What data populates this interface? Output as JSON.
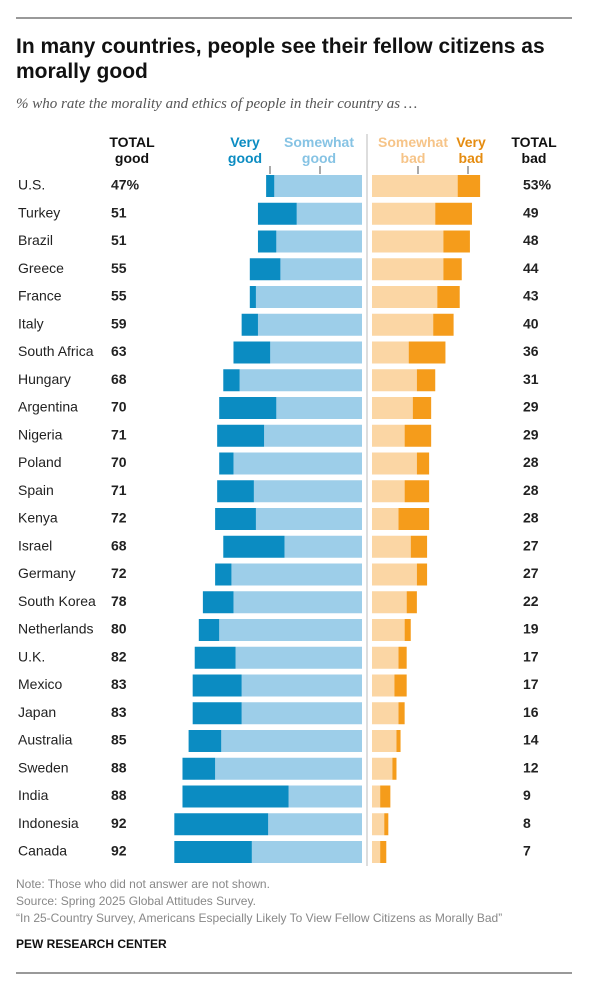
{
  "chart_data": {
    "type": "diverging-bar",
    "title": "In many countries, people see their fellow citizens as morally good",
    "subtitle": "% who rate the morality and ethics of people in their country as …",
    "categories": [
      "U.S.",
      "Turkey",
      "Brazil",
      "Greece",
      "France",
      "Italy",
      "South Africa",
      "Hungary",
      "Argentina",
      "Nigeria",
      "Poland",
      "Spain",
      "Kenya",
      "Israel",
      "Germany",
      "South Korea",
      "Netherlands",
      "U.K.",
      "Mexico",
      "Japan",
      "Australia",
      "Sweden",
      "India",
      "Indonesia",
      "Canada"
    ],
    "series": [
      {
        "name": "Very good",
        "color": "#0b8cc2",
        "side": "left",
        "values": [
          4,
          19,
          9,
          15,
          3,
          8,
          18,
          8,
          28,
          23,
          7,
          18,
          20,
          30,
          8,
          15,
          10,
          20,
          24,
          24,
          16,
          16,
          52,
          46,
          38
        ]
      },
      {
        "name": "Somewhat good",
        "color": "#9dcee9",
        "side": "left",
        "values": [
          43,
          32,
          42,
          40,
          52,
          51,
          45,
          60,
          42,
          48,
          63,
          53,
          52,
          38,
          64,
          63,
          70,
          62,
          59,
          59,
          69,
          72,
          36,
          46,
          54
        ]
      },
      {
        "name": "Somewhat bad",
        "color": "#fbd6a4",
        "side": "right",
        "values": [
          42,
          31,
          35,
          35,
          32,
          30,
          18,
          22,
          20,
          16,
          22,
          16,
          13,
          19,
          22,
          17,
          16,
          13,
          11,
          13,
          12,
          10,
          4,
          6,
          4
        ]
      },
      {
        "name": "Very bad",
        "color": "#f59c1b",
        "side": "right",
        "values": [
          11,
          18,
          13,
          9,
          11,
          10,
          18,
          9,
          9,
          13,
          6,
          12,
          15,
          8,
          5,
          5,
          3,
          4,
          6,
          3,
          2,
          2,
          5,
          2,
          3
        ]
      }
    ],
    "total_good": {
      "name": "TOTAL good",
      "values": [
        47,
        51,
        51,
        55,
        55,
        59,
        63,
        68,
        70,
        71,
        70,
        71,
        72,
        68,
        72,
        78,
        80,
        82,
        83,
        83,
        85,
        88,
        88,
        92,
        92
      ],
      "value_labels": [
        "47%",
        "51",
        "51",
        "55",
        "55",
        "59",
        "63",
        "68",
        "70",
        "71",
        "70",
        "71",
        "72",
        "68",
        "72",
        "78",
        "80",
        "82",
        "83",
        "83",
        "85",
        "88",
        "88",
        "92",
        "92"
      ]
    },
    "total_bad": {
      "name": "TOTAL bad",
      "values": [
        53,
        49,
        48,
        44,
        43,
        40,
        36,
        31,
        29,
        29,
        28,
        28,
        28,
        27,
        27,
        22,
        19,
        17,
        17,
        16,
        14,
        12,
        9,
        8,
        7
      ],
      "value_labels": [
        "53%",
        "49",
        "48",
        "44",
        "43",
        "40",
        "36",
        "31",
        "29",
        "29",
        "28",
        "28",
        "28",
        "27",
        "27",
        "22",
        "19",
        "17",
        "17",
        "16",
        "14",
        "12",
        "9",
        "8",
        "7"
      ]
    },
    "notes": [
      "Note: Those who did not answer are not shown.",
      "Source: Spring 2025 Global Attitudes Survey.",
      "“In 25-Country Survey, Americans Especially Likely To View Fellow Citizens as Morally Bad”"
    ],
    "source": "PEW RESEARCH CENTER"
  }
}
